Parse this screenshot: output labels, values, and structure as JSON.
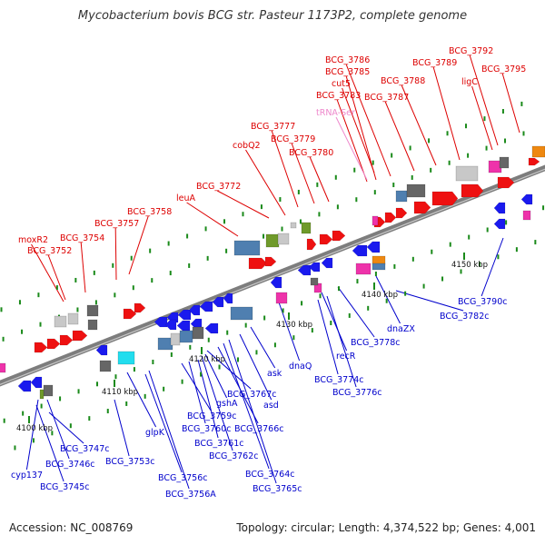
{
  "title": "Mycobacterium bovis BCG str. Pasteur 1173P2, complete genome",
  "footer": {
    "accession": "Accession: NC_008769",
    "summary": "Topology: circular; Length: 4,374,522 bp; Genes: 4,001"
  },
  "colors": {
    "forward_label": "#dd0000",
    "reverse_label": "#0000cc",
    "rna_label": "#ee88cc",
    "backbone": "#8a8a8a",
    "forward_gene": "#ee1111",
    "reverse_gene": "#1a1aee",
    "pseudo_gene": "#c8c8c8",
    "dark_gene": "#666666",
    "rna_gene": "#ee33aa",
    "steel_gene": "#4f7fb0",
    "olive_gene": "#6f9a2a",
    "cyan_gene": "#22ddee",
    "orange_gene": "#ee8811",
    "tick_mark": "#1a8a1a"
  },
  "ticks": [
    "4100 kbp",
    "4110 kbp",
    "4120 kbp",
    "4130 kbp",
    "4140 kbp",
    "4150 kbp"
  ],
  "forward_labels": [
    "moxR2",
    "BCG_3752",
    "BCG_3754",
    "BCG_3757",
    "BCG_3758",
    "leuA",
    "BCG_3772",
    "cobQ2",
    "BCG_3777",
    "BCG_3779",
    "BCG_3780",
    "BCG_3783",
    "BCG_3785",
    "cut5",
    "BCG_3786",
    "BCG_3787",
    "BCG_3788",
    "BCG_3789",
    "ligC",
    "BCG_3792",
    "BCG_3795"
  ],
  "rna_labels": [
    "tRNA-Ser"
  ],
  "reverse_labels": [
    "cyp137",
    "BCG_3746c",
    "BCG_3745c",
    "BCG_3747c",
    "BCG_3753c",
    "glpK",
    "BCG_3756c",
    "BCG_3756A",
    "BCG_3759c",
    "BCG_3760c",
    "BCG_3761c",
    "BCG_3762c",
    "gshA",
    "BCG_3767c",
    "BCG_3766c",
    "BCG_3764c",
    "BCG_3765c",
    "ask",
    "asd",
    "dnaQ",
    "recR",
    "BCG_3774c",
    "BCG_3776c",
    "BCG_3778c",
    "dnaZX",
    "BCG_3782c",
    "BCG_3790c"
  ]
}
